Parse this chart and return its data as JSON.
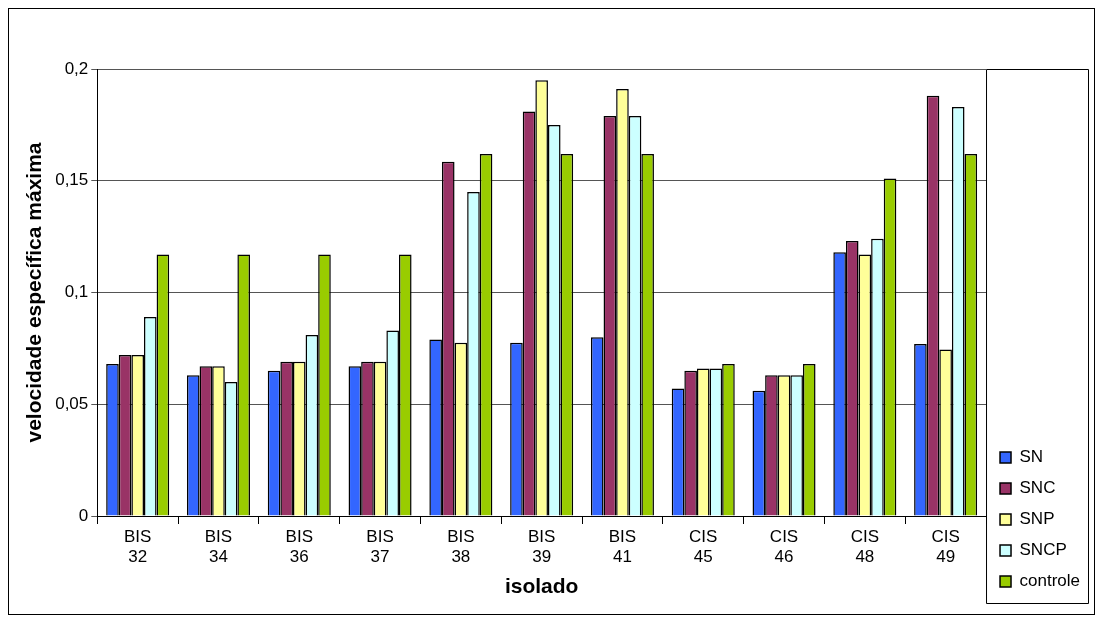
{
  "chart_data": {
    "type": "bar",
    "xlabel": "isolado",
    "ylabel": "velocidade específica máxima",
    "categories": [
      "BIS 32",
      "BIS 34",
      "BIS 36",
      "BIS 37",
      "BIS 38",
      "BIS 39",
      "BIS 41",
      "CIS 45",
      "CIS 46",
      "CIS 48",
      "CIS 49"
    ],
    "series": [
      {
        "name": "SN",
        "color": "#3366ff",
        "values": [
          0.068,
          0.063,
          0.065,
          0.067,
          0.079,
          0.0775,
          0.08,
          0.057,
          0.056,
          0.118,
          0.077
        ]
      },
      {
        "name": "SNC",
        "color": "#993366",
        "values": [
          0.072,
          0.067,
          0.069,
          0.069,
          0.1585,
          0.181,
          0.179,
          0.065,
          0.063,
          0.123,
          0.188
        ]
      },
      {
        "name": "SNP",
        "color": "#ffff99",
        "values": [
          0.072,
          0.067,
          0.069,
          0.069,
          0.0775,
          0.195,
          0.191,
          0.066,
          0.063,
          0.117,
          0.0745
        ]
      },
      {
        "name": "SNCP",
        "color": "#ccffff",
        "values": [
          0.089,
          0.06,
          0.081,
          0.083,
          0.145,
          0.175,
          0.179,
          0.066,
          0.063,
          0.124,
          0.183
        ]
      },
      {
        "name": "controle",
        "color": "#99cc00",
        "values": [
          0.117,
          0.117,
          0.117,
          0.117,
          0.162,
          0.162,
          0.162,
          0.068,
          0.068,
          0.151,
          0.162
        ]
      }
    ],
    "ylim": [
      0,
      0.2
    ],
    "yticks": [
      0,
      {
        "value": 0.05,
        "label": "0,05"
      },
      {
        "value": 0.1,
        "label": "0,1"
      },
      {
        "value": 0.15,
        "label": "0,15"
      },
      {
        "value": 0.2,
        "label": "0,2"
      }
    ],
    "grid": "y",
    "legend": "right"
  }
}
